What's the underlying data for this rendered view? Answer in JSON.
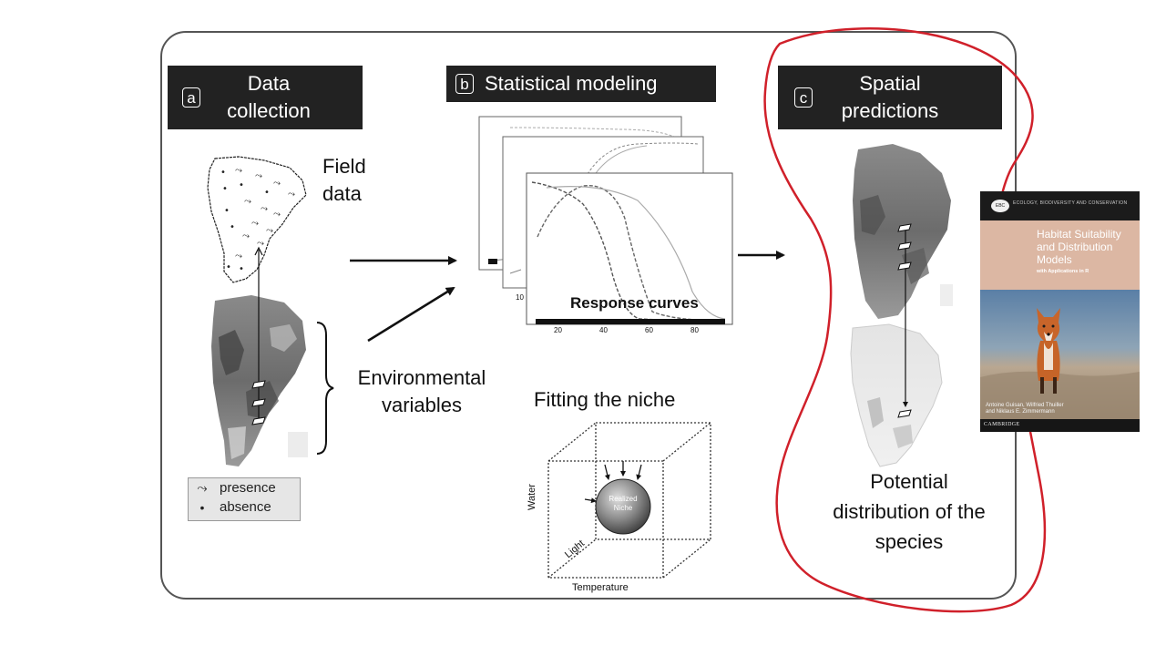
{
  "panels": {
    "a": {
      "letter": "a",
      "title": "Data\ncollection"
    },
    "b": {
      "letter": "b",
      "title": "Statistical modeling"
    },
    "c": {
      "letter": "c",
      "title": "Spatial\npredictions"
    }
  },
  "labels": {
    "field_data": "Field\ndata",
    "environmental_variables": "Environmental\nvariables",
    "response_curves": "Response curves",
    "fitting_the_niche": "Fitting the niche",
    "potential_distribution": "Potential\ndistribution of the\nspecies"
  },
  "legend": {
    "presence": "presence",
    "absence": "absence",
    "presence_symbol": "⤳",
    "absence_symbol": "•"
  },
  "response_axis": {
    "ticks": [
      "20",
      "40",
      "60",
      "80"
    ],
    "partial_tick": "10"
  },
  "niche_cube": {
    "sphere_label": "Realized\nNiche",
    "axis_water": "Water",
    "axis_light": "Light",
    "axis_temperature": "Temperature"
  },
  "book": {
    "series": "ECOLOGY, BIODIVERSITY AND CONSERVATION",
    "logo": "EBC",
    "title": "Habitat Suitability\nand Distribution\nModels",
    "subtitle": "with Applications in R",
    "authors": "Antoine Guisan, Wilfried Thuiller\nand Niklaus E. Zimmermann",
    "publisher": "CAMBRIDGE"
  },
  "colors": {
    "header_bg": "#222222",
    "header_text": "#ffffff",
    "annotation_red": "#d0202a",
    "book_title_band": "#dcb7a3"
  }
}
